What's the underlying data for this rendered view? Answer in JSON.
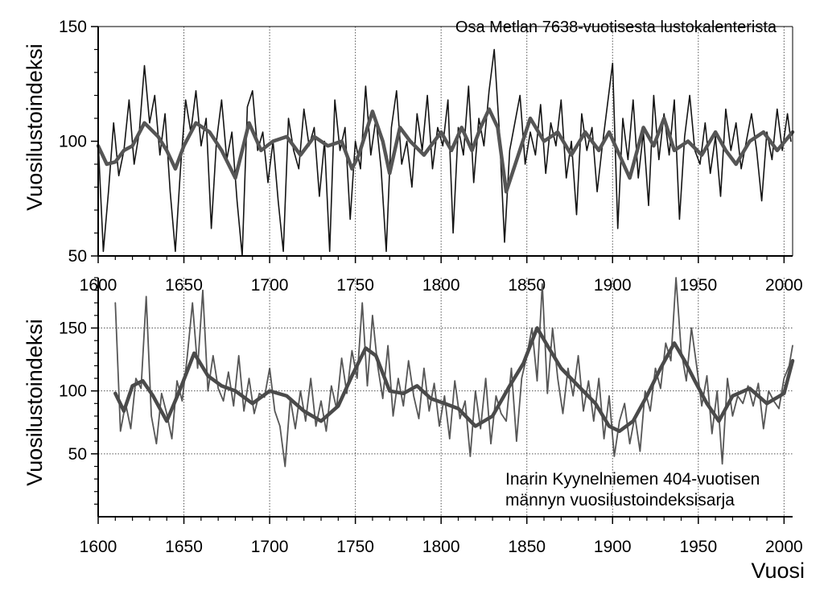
{
  "colors": {
    "raw": "#141414",
    "smooth": "#555555",
    "raw2": "#565656",
    "smooth2": "#4a4a4a",
    "axis": "#000000",
    "grid": "#555555"
  },
  "chart_data": [
    {
      "type": "line",
      "title": "Osa Metlan 7638-vuotisesta lustokalenterista",
      "xlabel": "",
      "ylabel": "Vuosilustoindeksi",
      "xlim": [
        1600,
        2005
      ],
      "ylim": [
        50,
        150
      ],
      "xticks": [
        "1600",
        "1650",
        "1700",
        "1750",
        "1800",
        "1850",
        "1900",
        "1950",
        "2000"
      ],
      "yticks": [
        "50",
        "100",
        "150"
      ],
      "grid": true,
      "series": [
        {
          "role": "raw",
          "x": [
            1600,
            1603,
            1606,
            1609,
            1612,
            1615,
            1618,
            1621,
            1624,
            1627,
            1630,
            1633,
            1636,
            1639,
            1642,
            1645,
            1648,
            1651,
            1654,
            1657,
            1660,
            1663,
            1666,
            1669,
            1672,
            1675,
            1678,
            1681,
            1684,
            1687,
            1690,
            1693,
            1696,
            1699,
            1702,
            1705,
            1708,
            1711,
            1714,
            1717,
            1720,
            1723,
            1726,
            1729,
            1732,
            1735,
            1738,
            1741,
            1744,
            1747,
            1750,
            1753,
            1756,
            1759,
            1762,
            1765,
            1768,
            1771,
            1774,
            1777,
            1780,
            1783,
            1786,
            1789,
            1792,
            1795,
            1798,
            1801,
            1804,
            1807,
            1810,
            1813,
            1816,
            1819,
            1822,
            1825,
            1828,
            1831,
            1834,
            1837,
            1840,
            1843,
            1846,
            1849,
            1852,
            1855,
            1858,
            1861,
            1864,
            1867,
            1870,
            1873,
            1876,
            1879,
            1882,
            1885,
            1888,
            1891,
            1894,
            1897,
            1900,
            1903,
            1906,
            1909,
            1912,
            1915,
            1918,
            1921,
            1924,
            1927,
            1930,
            1933,
            1936,
            1939,
            1942,
            1945,
            1948,
            1951,
            1954,
            1957,
            1960,
            1963,
            1966,
            1969,
            1972,
            1975,
            1978,
            1981,
            1984,
            1987,
            1990,
            1993,
            1996,
            1999,
            2002,
            2004
          ],
          "y": [
            100,
            52,
            78,
            108,
            85,
            96,
            118,
            90,
            104,
            133,
            108,
            120,
            94,
            112,
            78,
            52,
            88,
            118,
            104,
            122,
            98,
            110,
            62,
            100,
            118,
            92,
            104,
            74,
            50,
            115,
            122,
            96,
            104,
            82,
            100,
            74,
            52,
            110,
            96,
            88,
            114,
            98,
            106,
            76,
            100,
            52,
            118,
            96,
            106,
            66,
            100,
            88,
            124,
            94,
            110,
            88,
            52,
            106,
            122,
            90,
            100,
            80,
            112,
            96,
            120,
            88,
            106,
            98,
            118,
            60,
            106,
            94,
            124,
            82,
            110,
            98,
            122,
            140,
            104,
            56,
            96,
            108,
            120,
            90,
            104,
            94,
            116,
            86,
            108,
            98,
            118,
            84,
            100,
            68,
            112,
            96,
            106,
            78,
            98,
            116,
            134,
            62,
            110,
            92,
            118,
            84,
            104,
            72,
            120,
            92,
            112,
            94,
            118,
            66,
            102,
            120,
            96,
            90,
            108,
            86,
            102,
            76,
            114,
            96,
            108,
            88,
            100,
            112,
            96,
            74,
            104,
            92,
            114,
            96,
            112,
            100
          ]
        },
        {
          "role": "smoothed",
          "x": [
            1600,
            1605,
            1610,
            1615,
            1620,
            1627,
            1635,
            1640,
            1645,
            1650,
            1657,
            1665,
            1672,
            1680,
            1688,
            1695,
            1702,
            1710,
            1718,
            1726,
            1734,
            1742,
            1748,
            1752,
            1760,
            1766,
            1770,
            1776,
            1782,
            1790,
            1800,
            1806,
            1812,
            1818,
            1823,
            1828,
            1833,
            1838,
            1845,
            1852,
            1860,
            1868,
            1876,
            1884,
            1892,
            1898,
            1904,
            1910,
            1918,
            1924,
            1930,
            1936,
            1944,
            1952,
            1960,
            1966,
            1972,
            1980,
            1988,
            1996,
            2005
          ],
          "y": [
            98,
            90,
            91,
            96,
            98,
            108,
            102,
            96,
            88,
            98,
            108,
            104,
            96,
            84,
            108,
            96,
            100,
            102,
            94,
            102,
            98,
            100,
            88,
            94,
            113,
            100,
            86,
            106,
            100,
            94,
            104,
            96,
            106,
            96,
            106,
            114,
            106,
            78,
            94,
            110,
            100,
            104,
            94,
            104,
            96,
            104,
            94,
            84,
            106,
            98,
            110,
            96,
            100,
            94,
            104,
            96,
            90,
            100,
            104,
            96,
            104
          ]
        }
      ]
    },
    {
      "type": "line",
      "title": "",
      "annotation": [
        "Inarin Kyynelniemen 404-vuotisen",
        "männyn vuosilustoindeksisarja"
      ],
      "xlabel": "Vuosi",
      "ylabel": "Vuosilustoindeksi",
      "xlim": [
        1600,
        2005
      ],
      "ylim": [
        0,
        190
      ],
      "xticks": [
        "1600",
        "1650",
        "1700",
        "1750",
        "1800",
        "1850",
        "1900",
        "1950",
        "2000"
      ],
      "yticks": [
        "50",
        "100",
        "150"
      ],
      "grid": true,
      "series": [
        {
          "role": "raw",
          "x": [
            1610,
            1613,
            1616,
            1619,
            1622,
            1625,
            1628,
            1631,
            1634,
            1637,
            1640,
            1643,
            1646,
            1649,
            1652,
            1655,
            1658,
            1661,
            1664,
            1667,
            1670,
            1673,
            1676,
            1679,
            1682,
            1685,
            1688,
            1691,
            1694,
            1697,
            1700,
            1703,
            1706,
            1709,
            1712,
            1715,
            1718,
            1721,
            1724,
            1727,
            1730,
            1733,
            1736,
            1739,
            1742,
            1745,
            1748,
            1751,
            1754,
            1757,
            1760,
            1763,
            1766,
            1769,
            1772,
            1775,
            1778,
            1781,
            1784,
            1787,
            1790,
            1793,
            1796,
            1799,
            1802,
            1805,
            1808,
            1811,
            1814,
            1817,
            1820,
            1823,
            1826,
            1829,
            1832,
            1835,
            1838,
            1841,
            1844,
            1847,
            1850,
            1853,
            1856,
            1859,
            1862,
            1865,
            1868,
            1871,
            1874,
            1877,
            1880,
            1883,
            1886,
            1889,
            1892,
            1895,
            1898,
            1901,
            1904,
            1907,
            1910,
            1913,
            1916,
            1919,
            1922,
            1925,
            1928,
            1931,
            1934,
            1937,
            1940,
            1943,
            1946,
            1949,
            1952,
            1955,
            1958,
            1961,
            1964,
            1967,
            1970,
            1973,
            1976,
            1979,
            1982,
            1985,
            1988,
            1991,
            1994,
            1997,
            2000,
            2003,
            2005
          ],
          "y": [
            170,
            68,
            90,
            70,
            110,
            102,
            175,
            80,
            58,
            98,
            82,
            62,
            108,
            92,
            128,
            170,
            118,
            180,
            100,
            128,
            102,
            92,
            115,
            88,
            128,
            84,
            110,
            82,
            98,
            95,
            118,
            84,
            72,
            40,
            94,
            70,
            100,
            76,
            110,
            72,
            92,
            68,
            104,
            86,
            126,
            98,
            132,
            110,
            170,
            104,
            160,
            120,
            94,
            136,
            80,
            110,
            88,
            124,
            96,
            78,
            118,
            84,
            106,
            72,
            96,
            62,
            108,
            78,
            92,
            48,
            100,
            70,
            110,
            58,
            96,
            82,
            76,
            118,
            60,
            110,
            128,
            150,
            108,
            185,
            98,
            150,
            110,
            82,
            118,
            96,
            128,
            84,
            108,
            76,
            110,
            62,
            96,
            48,
            76,
            90,
            58,
            80,
            52,
            100,
            84,
            118,
            102,
            138,
            124,
            190,
            132,
            108,
            150,
            120,
            88,
            112,
            66,
            100,
            42,
            110,
            80,
            96,
            90,
            104,
            88,
            106,
            70,
            100,
            92,
            86,
            110,
            120,
            136
          ]
        },
        {
          "role": "smoothed",
          "x": [
            1610,
            1615,
            1620,
            1626,
            1632,
            1640,
            1648,
            1656,
            1664,
            1672,
            1680,
            1690,
            1700,
            1710,
            1720,
            1730,
            1740,
            1748,
            1756,
            1762,
            1770,
            1778,
            1786,
            1794,
            1802,
            1810,
            1820,
            1830,
            1840,
            1848,
            1856,
            1862,
            1870,
            1880,
            1890,
            1898,
            1904,
            1912,
            1920,
            1928,
            1936,
            1942,
            1948,
            1955,
            1962,
            1970,
            1980,
            1990,
            2000,
            2005
          ],
          "y": [
            98,
            84,
            104,
            108,
            96,
            76,
            102,
            130,
            112,
            104,
            100,
            90,
            100,
            96,
            84,
            76,
            88,
            112,
            134,
            128,
            100,
            98,
            104,
            94,
            90,
            86,
            72,
            80,
            104,
            122,
            150,
            136,
            118,
            104,
            90,
            72,
            68,
            76,
            96,
            118,
            138,
            124,
            108,
            90,
            76,
            96,
            102,
            90,
            98,
            124
          ]
        }
      ]
    }
  ]
}
